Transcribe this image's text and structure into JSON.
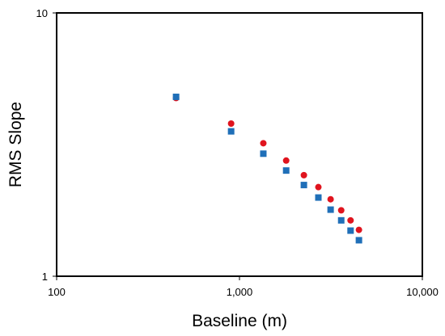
{
  "chart_data": {
    "type": "scatter",
    "x_scale": "log",
    "y_scale": "log",
    "xlabel": "Baseline (m)",
    "ylabel": "RMS Slope",
    "xlim": [
      100,
      10000
    ],
    "ylim": [
      1,
      10
    ],
    "x_ticks": [
      {
        "value": 100,
        "label": "100"
      },
      {
        "value": 1000,
        "label": "1,000"
      },
      {
        "value": 10000,
        "label": "10,000"
      }
    ],
    "y_ticks": [
      {
        "value": 1,
        "label": "1"
      },
      {
        "value": 10,
        "label": "10"
      }
    ],
    "grid": false,
    "legend": "none",
    "series": [
      {
        "marker": "circle",
        "color": "#e0141e",
        "points": [
          {
            "x": 450,
            "y": 4.75
          },
          {
            "x": 900,
            "y": 3.8
          },
          {
            "x": 1350,
            "y": 3.2
          },
          {
            "x": 1800,
            "y": 2.75
          },
          {
            "x": 2250,
            "y": 2.42
          },
          {
            "x": 2700,
            "y": 2.18
          },
          {
            "x": 3150,
            "y": 1.96
          },
          {
            "x": 3600,
            "y": 1.78
          },
          {
            "x": 4050,
            "y": 1.63
          },
          {
            "x": 4500,
            "y": 1.5
          }
        ]
      },
      {
        "marker": "square",
        "color": "#1f6fb8",
        "points": [
          {
            "x": 450,
            "y": 4.8
          },
          {
            "x": 900,
            "y": 3.55
          },
          {
            "x": 1350,
            "y": 2.92
          },
          {
            "x": 1800,
            "y": 2.52
          },
          {
            "x": 2250,
            "y": 2.22
          },
          {
            "x": 2700,
            "y": 1.99
          },
          {
            "x": 3150,
            "y": 1.79
          },
          {
            "x": 3600,
            "y": 1.63
          },
          {
            "x": 4050,
            "y": 1.49
          },
          {
            "x": 4500,
            "y": 1.37
          }
        ]
      }
    ]
  }
}
